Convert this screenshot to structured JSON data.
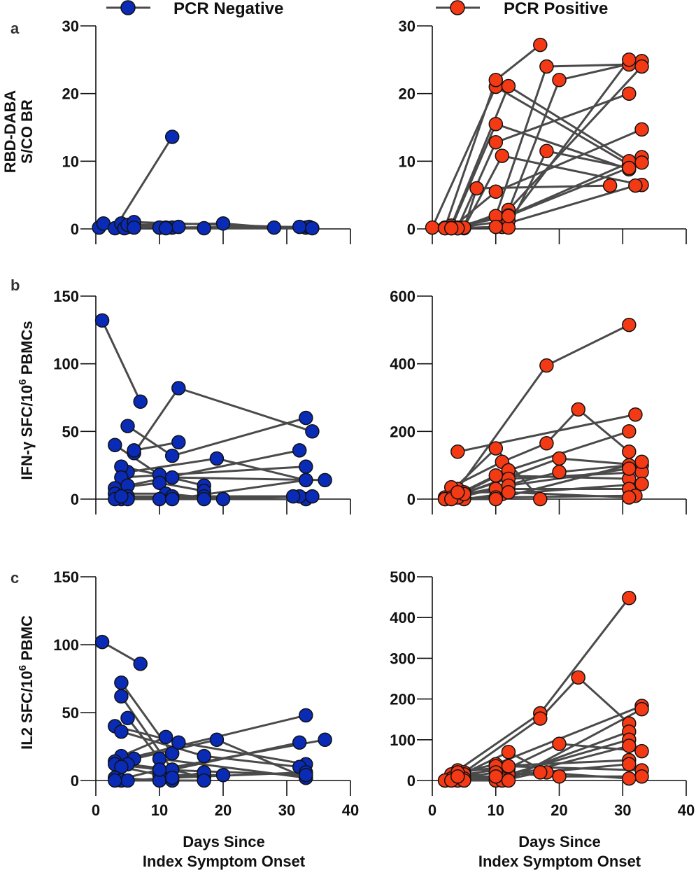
{
  "legend": [
    {
      "label": "PCR Negative",
      "color": "#0A2BB5"
    },
    {
      "label": "PCR Positive",
      "color": "#F33A15"
    }
  ],
  "line_color": "#4A4A4A",
  "chart_data": [
    {
      "type": "line",
      "panel": "a",
      "group": "PCR Negative",
      "ylabel": [
        "RBD-DABA",
        "S/CO BR"
      ],
      "xlabel": [
        "Days Since",
        "Index Symptom Onset"
      ],
      "xlim": [
        0,
        40
      ],
      "ylim": [
        0,
        30
      ],
      "xticks": [
        0,
        10,
        20,
        30,
        40
      ],
      "yticks": [
        0,
        10,
        20,
        30
      ],
      "series": [
        [
          [
            0.5,
            0.2
          ],
          [
            10,
            0.2
          ]
        ],
        [
          [
            1.2,
            0.8
          ],
          [
            12,
            0.2
          ]
        ],
        [
          [
            3,
            0.1
          ],
          [
            12,
            13.6
          ]
        ],
        [
          [
            4,
            0.8
          ],
          [
            11,
            0.2
          ]
        ],
        [
          [
            5,
            0.3
          ],
          [
            17,
            0.1
          ]
        ],
        [
          [
            4.5,
            0.1
          ],
          [
            13,
            0.3
          ]
        ],
        [
          [
            5,
            0.6
          ],
          [
            20,
            0.8
          ],
          [
            28,
            0.2
          ]
        ],
        [
          [
            6,
            1.0
          ],
          [
            33,
            0.2
          ]
        ],
        [
          [
            6,
            0.2
          ],
          [
            33.5,
            0.3
          ]
        ],
        [
          [
            10,
            0.2
          ],
          [
            32,
            0.3
          ]
        ],
        [
          [
            11,
            0.1
          ],
          [
            34,
            0.1
          ]
        ]
      ]
    },
    {
      "type": "line",
      "panel": "a",
      "group": "PCR Positive",
      "xlim": [
        0,
        40
      ],
      "ylim": [
        0,
        30
      ],
      "xticks": [
        0,
        10,
        20,
        30,
        40
      ],
      "yticks": [
        0,
        10,
        20,
        30
      ],
      "series": [
        [
          [
            0,
            0.2
          ],
          [
            10,
            21.0
          ],
          [
            31,
            9.5
          ]
        ],
        [
          [
            2,
            0.2
          ],
          [
            10,
            22.0
          ],
          [
            17,
            27.2
          ]
        ],
        [
          [
            3,
            0.5
          ],
          [
            12,
            21.1
          ],
          [
            31,
            10.0
          ]
        ],
        [
          [
            3,
            0.2
          ],
          [
            10,
            15.5
          ],
          [
            31,
            8.8
          ]
        ],
        [
          [
            4,
            0.2
          ],
          [
            10,
            12.8
          ],
          [
            31,
            20.0
          ]
        ],
        [
          [
            5,
            0.2
          ],
          [
            11,
            10.8
          ],
          [
            33,
            6.5
          ]
        ],
        [
          [
            5,
            0.1
          ],
          [
            7,
            6.0
          ],
          [
            28,
            6.4
          ]
        ],
        [
          [
            3,
            0.1
          ],
          [
            10,
            5.5
          ],
          [
            33,
            14.7
          ]
        ],
        [
          [
            4,
            0.1
          ],
          [
            10,
            1.9
          ],
          [
            18,
            24.0
          ],
          [
            31,
            24.3
          ]
        ],
        [
          [
            2,
            0.1
          ],
          [
            11,
            0.3
          ],
          [
            20,
            22.0
          ],
          [
            33,
            24.8
          ]
        ],
        [
          [
            3,
            0.1
          ],
          [
            12,
            1.2
          ],
          [
            31,
            25.0
          ]
        ],
        [
          [
            4,
            0.1
          ],
          [
            12,
            2.8
          ],
          [
            33,
            24.0
          ]
        ],
        [
          [
            5,
            0.2
          ],
          [
            12,
            0.2
          ],
          [
            18,
            11.5
          ],
          [
            31,
            9.0
          ]
        ],
        [
          [
            2,
            0.1
          ],
          [
            12,
            2.0
          ],
          [
            33,
            10.6
          ]
        ],
        [
          [
            4,
            0.1
          ],
          [
            10,
            0.3
          ],
          [
            32,
            6.4
          ]
        ],
        [
          [
            3,
            0.1
          ],
          [
            12,
            1.9
          ],
          [
            33,
            9.8
          ]
        ]
      ]
    },
    {
      "type": "line",
      "panel": "b",
      "group": "PCR Negative",
      "ylabel": [
        "IFN-γ SFC/10⁶ PBMCs"
      ],
      "xlabel": [
        "Days Since",
        "Index Symptom Onset"
      ],
      "xlim": [
        0,
        40
      ],
      "ylim": [
        0,
        150
      ],
      "xticks": [
        0,
        10,
        20,
        30,
        40
      ],
      "yticks": [
        0,
        50,
        100,
        150
      ],
      "series": [
        [
          [
            1,
            132
          ],
          [
            7,
            72
          ]
        ],
        [
          [
            5,
            54
          ],
          [
            12,
            32
          ],
          [
            33,
            60
          ]
        ],
        [
          [
            6,
            34
          ],
          [
            13,
            82
          ],
          [
            34,
            50
          ]
        ],
        [
          [
            6,
            36
          ],
          [
            13,
            42
          ]
        ],
        [
          [
            3,
            40
          ],
          [
            10,
            18
          ],
          [
            17,
            10
          ]
        ],
        [
          [
            5,
            20
          ],
          [
            19,
            30
          ],
          [
            33,
            14
          ]
        ],
        [
          [
            4,
            24
          ],
          [
            12,
            16
          ],
          [
            36,
            14
          ]
        ],
        [
          [
            4,
            16
          ],
          [
            33,
            24
          ]
        ],
        [
          [
            3,
            8
          ],
          [
            10,
            12
          ],
          [
            17,
            6
          ]
        ],
        [
          [
            5,
            10
          ],
          [
            32,
            36
          ]
        ],
        [
          [
            3,
            4
          ],
          [
            11,
            4
          ],
          [
            20,
            0
          ]
        ],
        [
          [
            4,
            0
          ],
          [
            10,
            0
          ],
          [
            33,
            0
          ]
        ],
        [
          [
            5,
            2
          ],
          [
            12,
            2
          ],
          [
            32,
            2
          ]
        ],
        [
          [
            3,
            0
          ],
          [
            17,
            2
          ],
          [
            34,
            2
          ]
        ],
        [
          [
            5,
            0
          ],
          [
            12,
            0
          ],
          [
            33,
            14
          ]
        ],
        [
          [
            4,
            2
          ],
          [
            17,
            0
          ],
          [
            31,
            2
          ]
        ]
      ]
    },
    {
      "type": "line",
      "panel": "b",
      "group": "PCR Positive",
      "xlim": [
        0,
        40
      ],
      "ylim": [
        0,
        600
      ],
      "xticks": [
        0,
        10,
        20,
        30,
        40
      ],
      "yticks": [
        0,
        200,
        400,
        600
      ],
      "series": [
        [
          [
            4,
            140
          ],
          [
            32,
            250
          ]
        ],
        [
          [
            4,
            30
          ],
          [
            18,
            395
          ],
          [
            31,
            515
          ]
        ],
        [
          [
            2,
            5
          ],
          [
            10,
            150
          ],
          [
            17,
            0
          ]
        ],
        [
          [
            3,
            35
          ],
          [
            11,
            110
          ],
          [
            18,
            165
          ],
          [
            23,
            265
          ],
          [
            31,
            140
          ]
        ],
        [
          [
            5,
            20
          ],
          [
            12,
            85
          ],
          [
            31,
            200
          ]
        ],
        [
          [
            4,
            10
          ],
          [
            20,
            120
          ],
          [
            33,
            100
          ]
        ],
        [
          [
            5,
            10
          ],
          [
            20,
            80
          ],
          [
            31,
            100
          ]
        ],
        [
          [
            2,
            0
          ],
          [
            12,
            60
          ],
          [
            33,
            80
          ]
        ],
        [
          [
            3,
            5
          ],
          [
            10,
            70
          ],
          [
            31,
            60
          ]
        ],
        [
          [
            5,
            0
          ],
          [
            11,
            15
          ],
          [
            33,
            45
          ]
        ],
        [
          [
            4,
            5
          ],
          [
            10,
            30
          ],
          [
            31,
            30
          ]
        ],
        [
          [
            2,
            0
          ],
          [
            10,
            5
          ],
          [
            32,
            10
          ]
        ],
        [
          [
            5,
            15
          ],
          [
            12,
            40
          ],
          [
            31,
            90
          ]
        ],
        [
          [
            3,
            0
          ],
          [
            10,
            0
          ],
          [
            33,
            110
          ]
        ],
        [
          [
            4,
            20
          ],
          [
            12,
            20
          ],
          [
            31,
            5
          ]
        ]
      ]
    },
    {
      "type": "line",
      "panel": "c",
      "group": "PCR Negative",
      "ylabel": [
        "IL2 SFC/10⁶ PBMC"
      ],
      "xlabel": [
        "Days Since",
        "Index Symptom Onset"
      ],
      "xlim": [
        0,
        40
      ],
      "ylim": [
        0,
        150
      ],
      "xticks": [
        0,
        10,
        20,
        30,
        40
      ],
      "yticks": [
        0,
        50,
        100,
        150
      ],
      "series": [
        [
          [
            1,
            102
          ],
          [
            7,
            86
          ]
        ],
        [
          [
            4,
            72
          ],
          [
            12,
            20
          ]
        ],
        [
          [
            4,
            62
          ],
          [
            12,
            8
          ],
          [
            17,
            2
          ]
        ],
        [
          [
            5,
            46
          ],
          [
            10,
            16
          ],
          [
            33,
            2
          ]
        ],
        [
          [
            3,
            40
          ],
          [
            13,
            28
          ],
          [
            33,
            12
          ]
        ],
        [
          [
            4,
            36
          ],
          [
            17,
            18
          ],
          [
            32,
            10
          ]
        ],
        [
          [
            4,
            18
          ],
          [
            11,
            32
          ]
        ],
        [
          [
            6,
            16
          ],
          [
            19,
            30
          ],
          [
            33,
            2
          ]
        ],
        [
          [
            3,
            14
          ],
          [
            33,
            48
          ]
        ],
        [
          [
            3,
            12
          ],
          [
            10,
            8
          ],
          [
            36,
            30
          ]
        ],
        [
          [
            5,
            12
          ],
          [
            12,
            8
          ],
          [
            32,
            28
          ]
        ],
        [
          [
            4,
            10
          ],
          [
            10,
            4
          ],
          [
            20,
            4
          ]
        ],
        [
          [
            3,
            2
          ],
          [
            10,
            0
          ],
          [
            17,
            6
          ]
        ],
        [
          [
            4,
            0
          ],
          [
            12,
            0
          ],
          [
            17,
            0
          ]
        ],
        [
          [
            5,
            0
          ],
          [
            12,
            2
          ],
          [
            33,
            6
          ]
        ],
        [
          [
            3,
            0
          ],
          [
            10,
            8
          ],
          [
            33,
            4
          ]
        ]
      ]
    },
    {
      "type": "line",
      "panel": "c",
      "group": "PCR Positive",
      "xlim": [
        0,
        40
      ],
      "ylim": [
        0,
        500
      ],
      "xticks": [
        0,
        10,
        20,
        30,
        40
      ],
      "yticks": [
        0,
        100,
        200,
        300,
        400,
        500
      ],
      "series": [
        [
          [
            4,
            25
          ],
          [
            17,
            165
          ],
          [
            31,
            448
          ]
        ],
        [
          [
            5,
            20
          ],
          [
            17,
            152
          ],
          [
            23,
            253
          ],
          [
            31,
            140
          ]
        ],
        [
          [
            4,
            10
          ],
          [
            12,
            70
          ],
          [
            18,
            20
          ]
        ],
        [
          [
            3,
            15
          ],
          [
            10,
            40
          ],
          [
            33,
            183
          ]
        ],
        [
          [
            5,
            15
          ],
          [
            12,
            30
          ],
          [
            20,
            90
          ],
          [
            33,
            72
          ]
        ],
        [
          [
            2,
            0
          ],
          [
            10,
            0
          ],
          [
            31,
            120
          ]
        ],
        [
          [
            4,
            0
          ],
          [
            12,
            15
          ],
          [
            31,
            100
          ]
        ],
        [
          [
            3,
            5
          ],
          [
            11,
            5
          ],
          [
            31,
            85
          ]
        ],
        [
          [
            5,
            5
          ],
          [
            10,
            35
          ],
          [
            31,
            50
          ]
        ],
        [
          [
            4,
            20
          ],
          [
            12,
            35
          ],
          [
            33,
            25
          ]
        ],
        [
          [
            2,
            0
          ],
          [
            10,
            20
          ],
          [
            20,
            10
          ],
          [
            33,
            10
          ]
        ],
        [
          [
            3,
            0
          ],
          [
            11,
            0
          ],
          [
            17,
            20
          ],
          [
            31,
            5
          ]
        ],
        [
          [
            5,
            0
          ],
          [
            12,
            0
          ],
          [
            33,
            175
          ]
        ],
        [
          [
            4,
            10
          ],
          [
            10,
            10
          ],
          [
            31,
            40
          ]
        ]
      ]
    }
  ],
  "panel_letters": [
    "a",
    "b",
    "c"
  ],
  "xlabel_line1": "Days Since",
  "xlabel_line2": "Index Symptom Onset",
  "ylabels": {
    "a1": "RBD-DABA",
    "a2": "S/CO BR",
    "b_main": "IFN-γ SFC/10",
    "b_sup": "6",
    "b_tail": " PBMCs",
    "c_main": "IL2 SFC/10",
    "c_sup": "6",
    "c_tail": " PBMC"
  }
}
